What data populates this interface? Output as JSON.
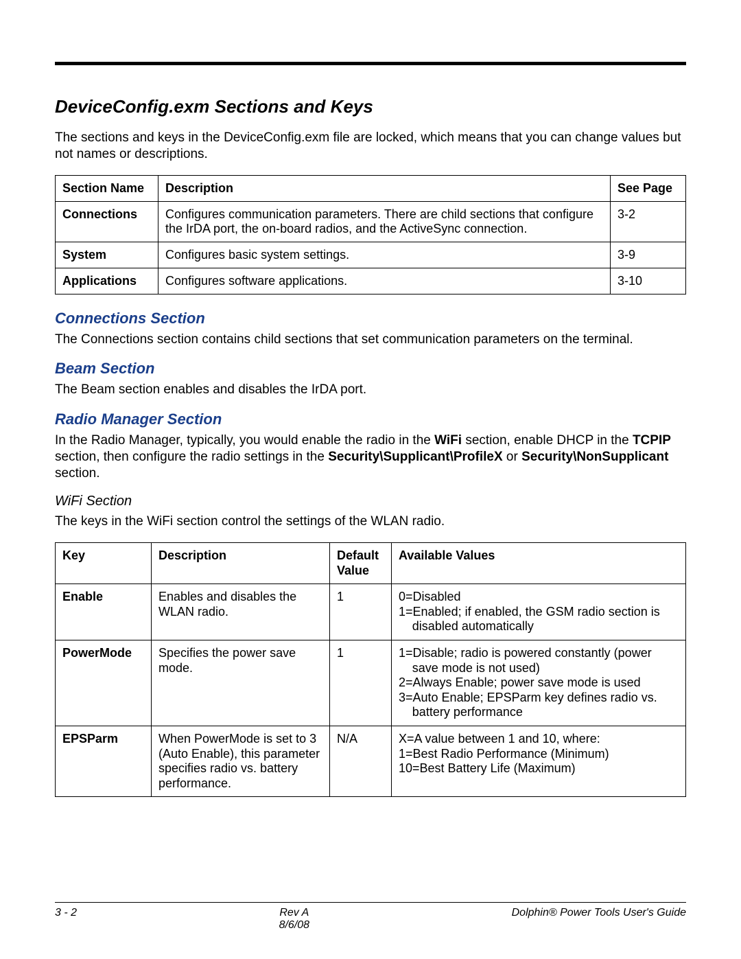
{
  "title": "DeviceConfig.exm Sections and Keys",
  "intro": "The sections and keys in the DeviceConfig.exm file are locked, which means that you can change values but not names or descriptions.",
  "sections_table": {
    "headers": {
      "name": "Section Name",
      "desc": "Description",
      "page": "See Page"
    },
    "rows": [
      {
        "name": "Connections",
        "desc": "Configures communication parameters. There are child sections that configure the IrDA port, the on-board radios, and the ActiveSync connection.",
        "page": "3-2"
      },
      {
        "name": "System",
        "desc": "Configures basic system settings.",
        "page": "3-9"
      },
      {
        "name": "Applications",
        "desc": "Configures software applications.",
        "page": "3-10"
      }
    ]
  },
  "connections": {
    "heading": "Connections Section",
    "text": "The Connections section contains child sections that set communication parameters on the terminal."
  },
  "beam": {
    "heading": "Beam Section",
    "text": "The Beam section enables and disables the IrDA port."
  },
  "radio": {
    "heading": "Radio Manager Section",
    "pre": "In the Radio Manager, typically, you would enable the radio in the ",
    "b1": "WiFi",
    "mid1": " section, enable DHCP in the ",
    "b2": "TCPIP",
    "mid2": " section, then configure the radio settings in the ",
    "b3": "Security\\Supplicant\\ProfileX",
    "mid3": " or ",
    "b4": "Security\\NonSupplicant",
    "post": " section."
  },
  "wifi": {
    "heading": "WiFi Section",
    "text": "The keys in the WiFi section control the settings of the WLAN radio.",
    "headers": {
      "key": "Key",
      "desc": "Description",
      "def": "Default Value",
      "avail": "Available Values"
    },
    "rows": [
      {
        "key": "Enable",
        "desc": "Enables and disables the WLAN radio.",
        "def": "1",
        "avail_lines": [
          "0=Disabled",
          "1=Enabled; if enabled, the GSM radio section is disabled automatically"
        ]
      },
      {
        "key": "PowerMode",
        "desc": "Specifies the power save mode.",
        "def": "1",
        "avail_lines": [
          "1=Disable; radio is powered constantly (power save mode is not used)",
          "2=Always Enable; power save mode is used",
          "3=Auto Enable; EPSParm key defines radio vs. battery performance"
        ]
      },
      {
        "key": "EPSParm",
        "desc": "When PowerMode is set to 3 (Auto Enable), this parameter specifies radio vs. battery performance.",
        "def": "N/A",
        "avail_lines": [
          "X=A value between 1 and 10, where:",
          "1=Best Radio Performance (Minimum)",
          "10=Best Battery Life (Maximum)"
        ]
      }
    ]
  },
  "footer": {
    "left": "3 - 2",
    "center_top": "Rev A",
    "center_bottom": "8/6/08",
    "right": "Dolphin® Power Tools User's Guide"
  },
  "colors": {
    "heading_blue": "#1a3e8a",
    "text": "#000000",
    "background": "#ffffff",
    "border": "#000000"
  },
  "typography": {
    "body_pt": 19,
    "h1_pt": 26,
    "h2_pt": 22,
    "h3_pt": 20,
    "footer_pt": 16,
    "family": "Arial"
  }
}
